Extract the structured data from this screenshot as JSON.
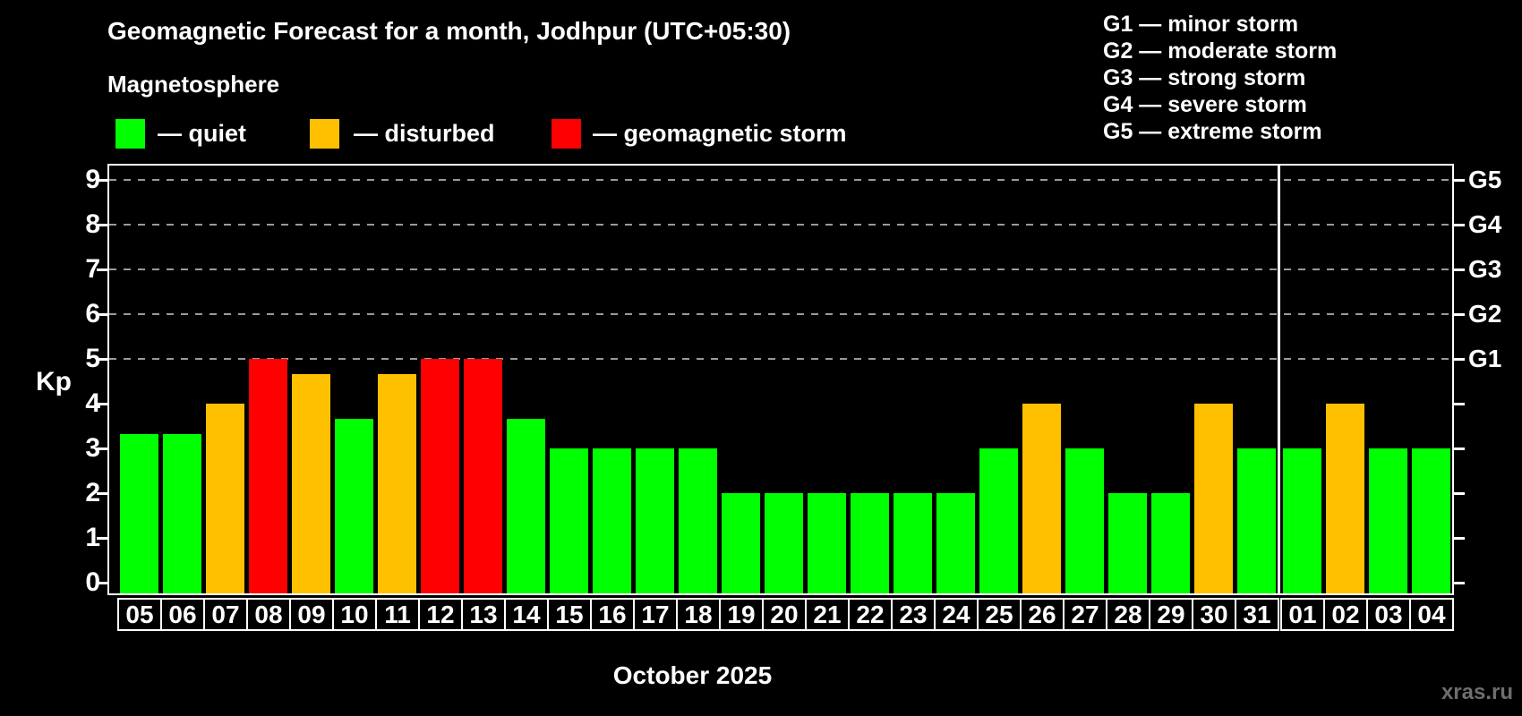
{
  "header": {
    "title": "Geomagnetic Forecast for a month, Jodhpur (UTC+05:30)",
    "subtitle": "Magnetosphere"
  },
  "legend": {
    "items": [
      {
        "name": "quiet",
        "label": "— quiet",
        "color": "#00ff00"
      },
      {
        "name": "disturbed",
        "label": "— disturbed",
        "color": "#ffc000"
      },
      {
        "name": "storm",
        "label": "— geomagnetic storm",
        "color": "#ff0000"
      }
    ]
  },
  "g_legend": {
    "items": [
      {
        "label": "G1 — minor storm"
      },
      {
        "label": "G2 — moderate storm"
      },
      {
        "label": "G3 — strong storm"
      },
      {
        "label": "G4 — severe storm"
      },
      {
        "label": "G5 — extreme storm"
      }
    ]
  },
  "chart_data": {
    "type": "bar",
    "title": "Geomagnetic Forecast for a month, Jodhpur (UTC+05:30)",
    "ylabel": "Kp",
    "xlabel": "October 2025",
    "ylim": [
      0,
      9.6
    ],
    "yticks": [
      0,
      1,
      2,
      3,
      4,
      5,
      6,
      7,
      8,
      9
    ],
    "gridlines_at": [
      5,
      6,
      7,
      8,
      9
    ],
    "grid_color": "#9a9a9a",
    "right_axis_labels": [
      {
        "label": "G1",
        "kp": 5
      },
      {
        "label": "G2",
        "kp": 6
      },
      {
        "label": "G3",
        "kp": 7
      },
      {
        "label": "G4",
        "kp": 8
      },
      {
        "label": "G5",
        "kp": 9
      }
    ],
    "categories": [
      "05",
      "06",
      "07",
      "08",
      "09",
      "10",
      "11",
      "12",
      "13",
      "14",
      "15",
      "16",
      "17",
      "18",
      "19",
      "20",
      "21",
      "22",
      "23",
      "24",
      "25",
      "26",
      "27",
      "28",
      "29",
      "30",
      "31",
      "01",
      "02",
      "03",
      "04"
    ],
    "values": [
      3.33,
      3.33,
      4,
      5,
      4.67,
      3.67,
      4.67,
      5,
      5,
      3.67,
      3,
      3,
      3,
      3,
      2,
      2,
      2,
      2,
      2,
      2,
      3,
      4,
      3,
      2,
      2,
      4,
      3,
      3,
      4,
      3,
      3
    ],
    "statuses": [
      "quiet",
      "quiet",
      "disturbed",
      "storm",
      "disturbed",
      "quiet",
      "disturbed",
      "storm",
      "storm",
      "quiet",
      "quiet",
      "quiet",
      "quiet",
      "quiet",
      "quiet",
      "quiet",
      "quiet",
      "quiet",
      "quiet",
      "quiet",
      "quiet",
      "disturbed",
      "quiet",
      "quiet",
      "quiet",
      "disturbed",
      "quiet",
      "quiet",
      "disturbed",
      "quiet",
      "quiet"
    ],
    "status_colors": {
      "quiet": "#00ff00",
      "disturbed": "#ffc000",
      "storm": "#ff0000"
    },
    "month_separator_after_index": 26,
    "legend_position": "top-left"
  },
  "footer": {
    "xlabel": "October 2025",
    "watermark": "xras.ru"
  }
}
